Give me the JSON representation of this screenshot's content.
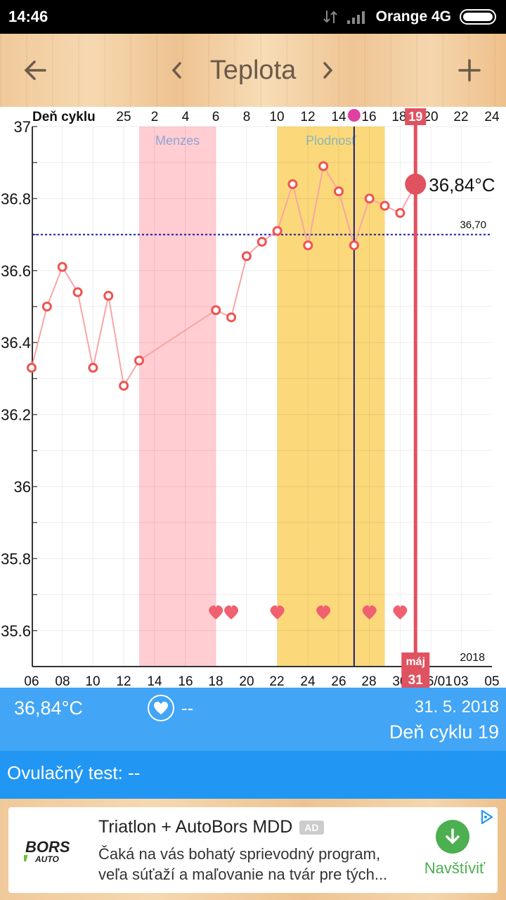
{
  "status_bar": {
    "time": "14:46",
    "carrier": "Orange 4G"
  },
  "toolbar": {
    "title": "Teplota",
    "back_icon": "arrow-left-icon",
    "prev_icon": "chevron-left-icon",
    "next_icon": "chevron-right-icon",
    "add_icon": "plus-icon"
  },
  "chart_data": {
    "type": "line",
    "cycle_axis_label": "Deň cyklu",
    "cycle_ticks": [
      "25",
      "2",
      "4",
      "6",
      "8",
      "10",
      "12",
      "14",
      "16",
      "18",
      "19",
      "20",
      "22",
      "24"
    ],
    "date_ticks": [
      "06",
      "08",
      "10",
      "12",
      "14",
      "16",
      "18",
      "20",
      "22",
      "24",
      "26",
      "28",
      "30",
      "31",
      "06/01",
      "03",
      "05"
    ],
    "year_label": "2018",
    "month_label": "máj",
    "ylim": [
      35.5,
      37.0
    ],
    "y_ticks": [
      "37",
      "36.8",
      "36.6",
      "36.4",
      "36.2",
      "36",
      "35.8",
      "35.6"
    ],
    "series": [
      {
        "x": [
          "2018-05-06",
          "2018-05-07",
          "2018-05-08",
          "2018-05-09",
          "2018-05-10",
          "2018-05-11",
          "2018-05-12",
          "2018-05-13",
          "2018-05-18",
          "2018-05-19",
          "2018-05-20",
          "2018-05-21",
          "2018-05-22",
          "2018-05-23",
          "2018-05-24",
          "2018-05-25",
          "2018-05-26",
          "2018-05-27",
          "2018-05-28",
          "2018-05-29",
          "2018-05-30",
          "2018-05-31"
        ],
        "values": [
          36.33,
          36.5,
          36.61,
          36.54,
          36.33,
          36.53,
          36.28,
          36.35,
          36.49,
          36.47,
          36.64,
          36.68,
          36.71,
          36.84,
          36.67,
          36.89,
          36.82,
          36.67,
          36.8,
          36.78,
          36.76,
          36.84
        ]
      }
    ],
    "coverline": {
      "value": 36.7,
      "label": "36,70"
    },
    "bands": [
      {
        "label": "Menzes",
        "from": "2018-05-13",
        "to": "2018-05-18",
        "color": "#ffcdd2",
        "label_color": "#90a4d4"
      },
      {
        "label": "Plodnosť",
        "from": "2018-05-22",
        "to": "2018-05-29",
        "color": "#fbd97a",
        "label_color": "#8fb4b8"
      }
    ],
    "hearts": [
      "2018-05-18",
      "2018-05-19",
      "2018-05-22",
      "2018-05-25",
      "2018-05-28",
      "2018-05-30"
    ],
    "ovulation_date": "2018-05-27",
    "selected": {
      "date": "2018-05-31",
      "cycle_day": "19",
      "value_label": "36,84°C",
      "date_tick_label": "31"
    },
    "grid": true,
    "colors": {
      "line": "#f8a5a5",
      "point": "#ef5350",
      "selected": "#e05260",
      "coverline": "#1a1aaa",
      "ovulation": "#1a1a7a",
      "heart": "#f06070",
      "ovulation_marker": "#e040a0"
    }
  },
  "info": {
    "temperature": "36,84°C",
    "intercourse": "--",
    "date": "31. 5. 2018",
    "cycle_day": "Deň cyklu 19",
    "heart_icon": "heart-icon"
  },
  "ovulation_test": {
    "text": "Ovulačný test: --"
  },
  "ad": {
    "title": "Triatlon + AutoBors MDD",
    "badge": "AD",
    "desc_line1": "Čaká na vás bohatý sprievodný program,",
    "desc_line2": "veľa súťaží a maľovanie na tvár pre tých...",
    "cta": "Navštíviť",
    "logo_text_1": "BORS",
    "logo_text_2": "AUTO"
  }
}
